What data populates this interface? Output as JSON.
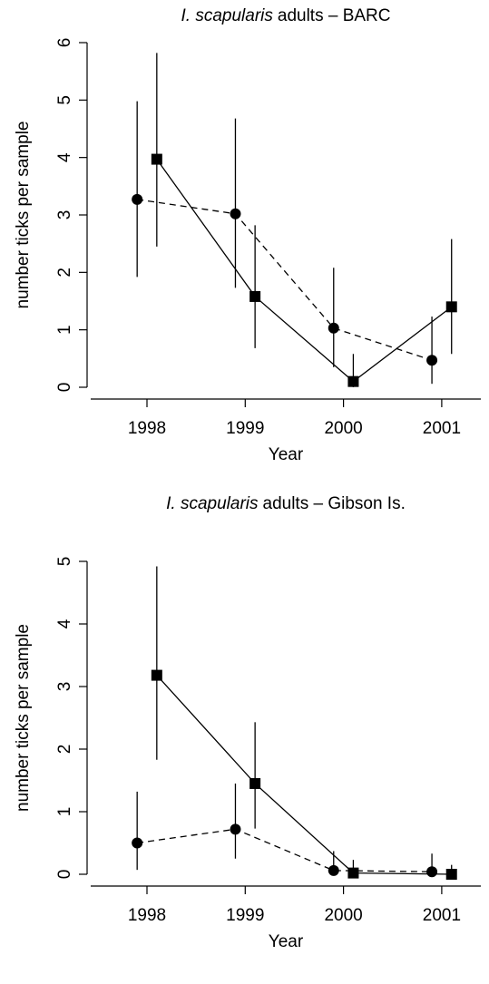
{
  "chart_data": [
    {
      "type": "line",
      "title": [
        {
          "text": "I. scapularis",
          "italic": true
        },
        {
          "text": "adults – BARC"
        }
      ],
      "xlabel": "Year",
      "ylabel": "number ticks per sample",
      "categories": [
        "1998",
        "1999",
        "2000",
        "2001"
      ],
      "ylim": [
        0,
        6
      ],
      "yticks": [
        0,
        1,
        2,
        3,
        4,
        5,
        6
      ],
      "series": [
        {
          "marker": "circle",
          "dashed": true,
          "color": "#000",
          "values": [
            3.27,
            3.02,
            1.03,
            0.47
          ],
          "lower": [
            1.92,
            1.73,
            0.35,
            0.06
          ],
          "upper": [
            4.98,
            4.68,
            2.08,
            1.23
          ]
        },
        {
          "marker": "square",
          "dashed": false,
          "color": "#000",
          "values": [
            3.97,
            1.58,
            0.1,
            1.4
          ],
          "lower": [
            2.45,
            0.68,
            0.0,
            0.58
          ],
          "upper": [
            5.82,
            2.82,
            0.58,
            2.58
          ]
        }
      ]
    },
    {
      "type": "line",
      "title": [
        {
          "text": "I. scapularis",
          "italic": true
        },
        {
          "text": "adults – Gibson Is."
        }
      ],
      "xlabel": "Year",
      "ylabel": "number ticks per sample",
      "categories": [
        "1998",
        "1999",
        "2000",
        "2001"
      ],
      "ylim": [
        0,
        5
      ],
      "yticks": [
        0,
        1,
        2,
        3,
        4,
        5
      ],
      "series": [
        {
          "marker": "circle",
          "dashed": true,
          "color": "#000",
          "values": [
            0.5,
            0.72,
            0.06,
            0.04
          ],
          "lower": [
            0.07,
            0.25,
            0.0,
            0.0
          ],
          "upper": [
            1.32,
            1.45,
            0.37,
            0.33
          ]
        },
        {
          "marker": "square",
          "dashed": false,
          "color": "#000",
          "values": [
            3.18,
            1.45,
            0.02,
            0.0
          ],
          "lower": [
            1.83,
            0.73,
            0.0,
            0.0
          ],
          "upper": [
            4.92,
            2.43,
            0.23,
            0.15
          ]
        }
      ]
    }
  ]
}
